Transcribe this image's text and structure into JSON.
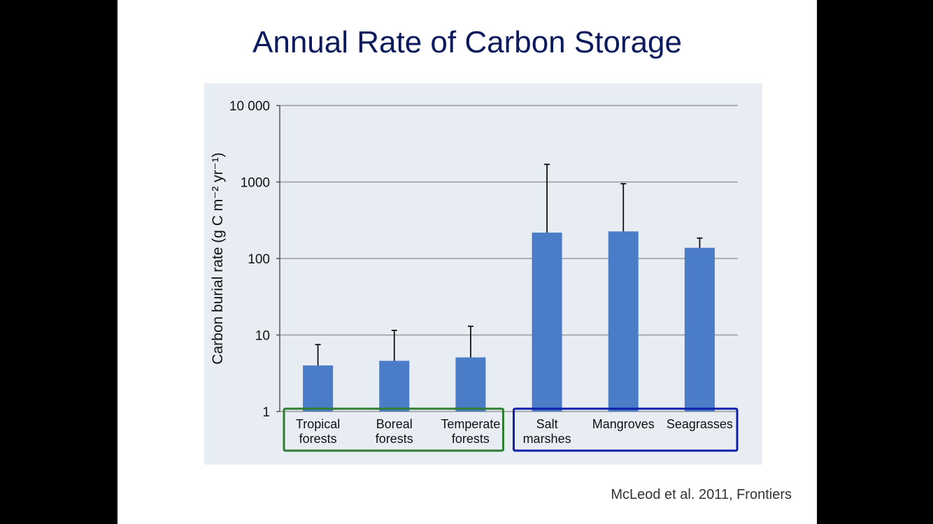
{
  "slide": {
    "title": "Annual Rate of Carbon Storage",
    "citation": "McLeod et al. 2011, Frontiers"
  },
  "chart_data": {
    "type": "bar",
    "yscale": "log",
    "ylim": [
      1,
      10000
    ],
    "yticks": [
      1,
      10,
      100,
      1000,
      10000
    ],
    "ytick_labels": [
      "1",
      "10",
      "100",
      "1000",
      "10 000"
    ],
    "ylabel": "Carbon burial rate (g C m⁻² yr⁻¹)",
    "grid": true,
    "categories": [
      [
        "Tropical",
        "forests"
      ],
      [
        "Boreal",
        "forests"
      ],
      [
        "Temperate",
        "forests"
      ],
      [
        "Salt",
        "marshes"
      ],
      [
        "Mangroves"
      ],
      [
        "Seagrasses"
      ]
    ],
    "values": [
      4,
      4.6,
      5.1,
      218,
      226,
      138
    ],
    "error_upper": [
      7.5,
      11.5,
      13,
      1700,
      950,
      185
    ],
    "groups": [
      {
        "members": [
          0,
          1,
          2
        ],
        "color": "#2e7d32"
      },
      {
        "members": [
          3,
          4,
          5
        ],
        "color": "#0d1fa8"
      }
    ],
    "bar_color": "#4a7cc7"
  }
}
